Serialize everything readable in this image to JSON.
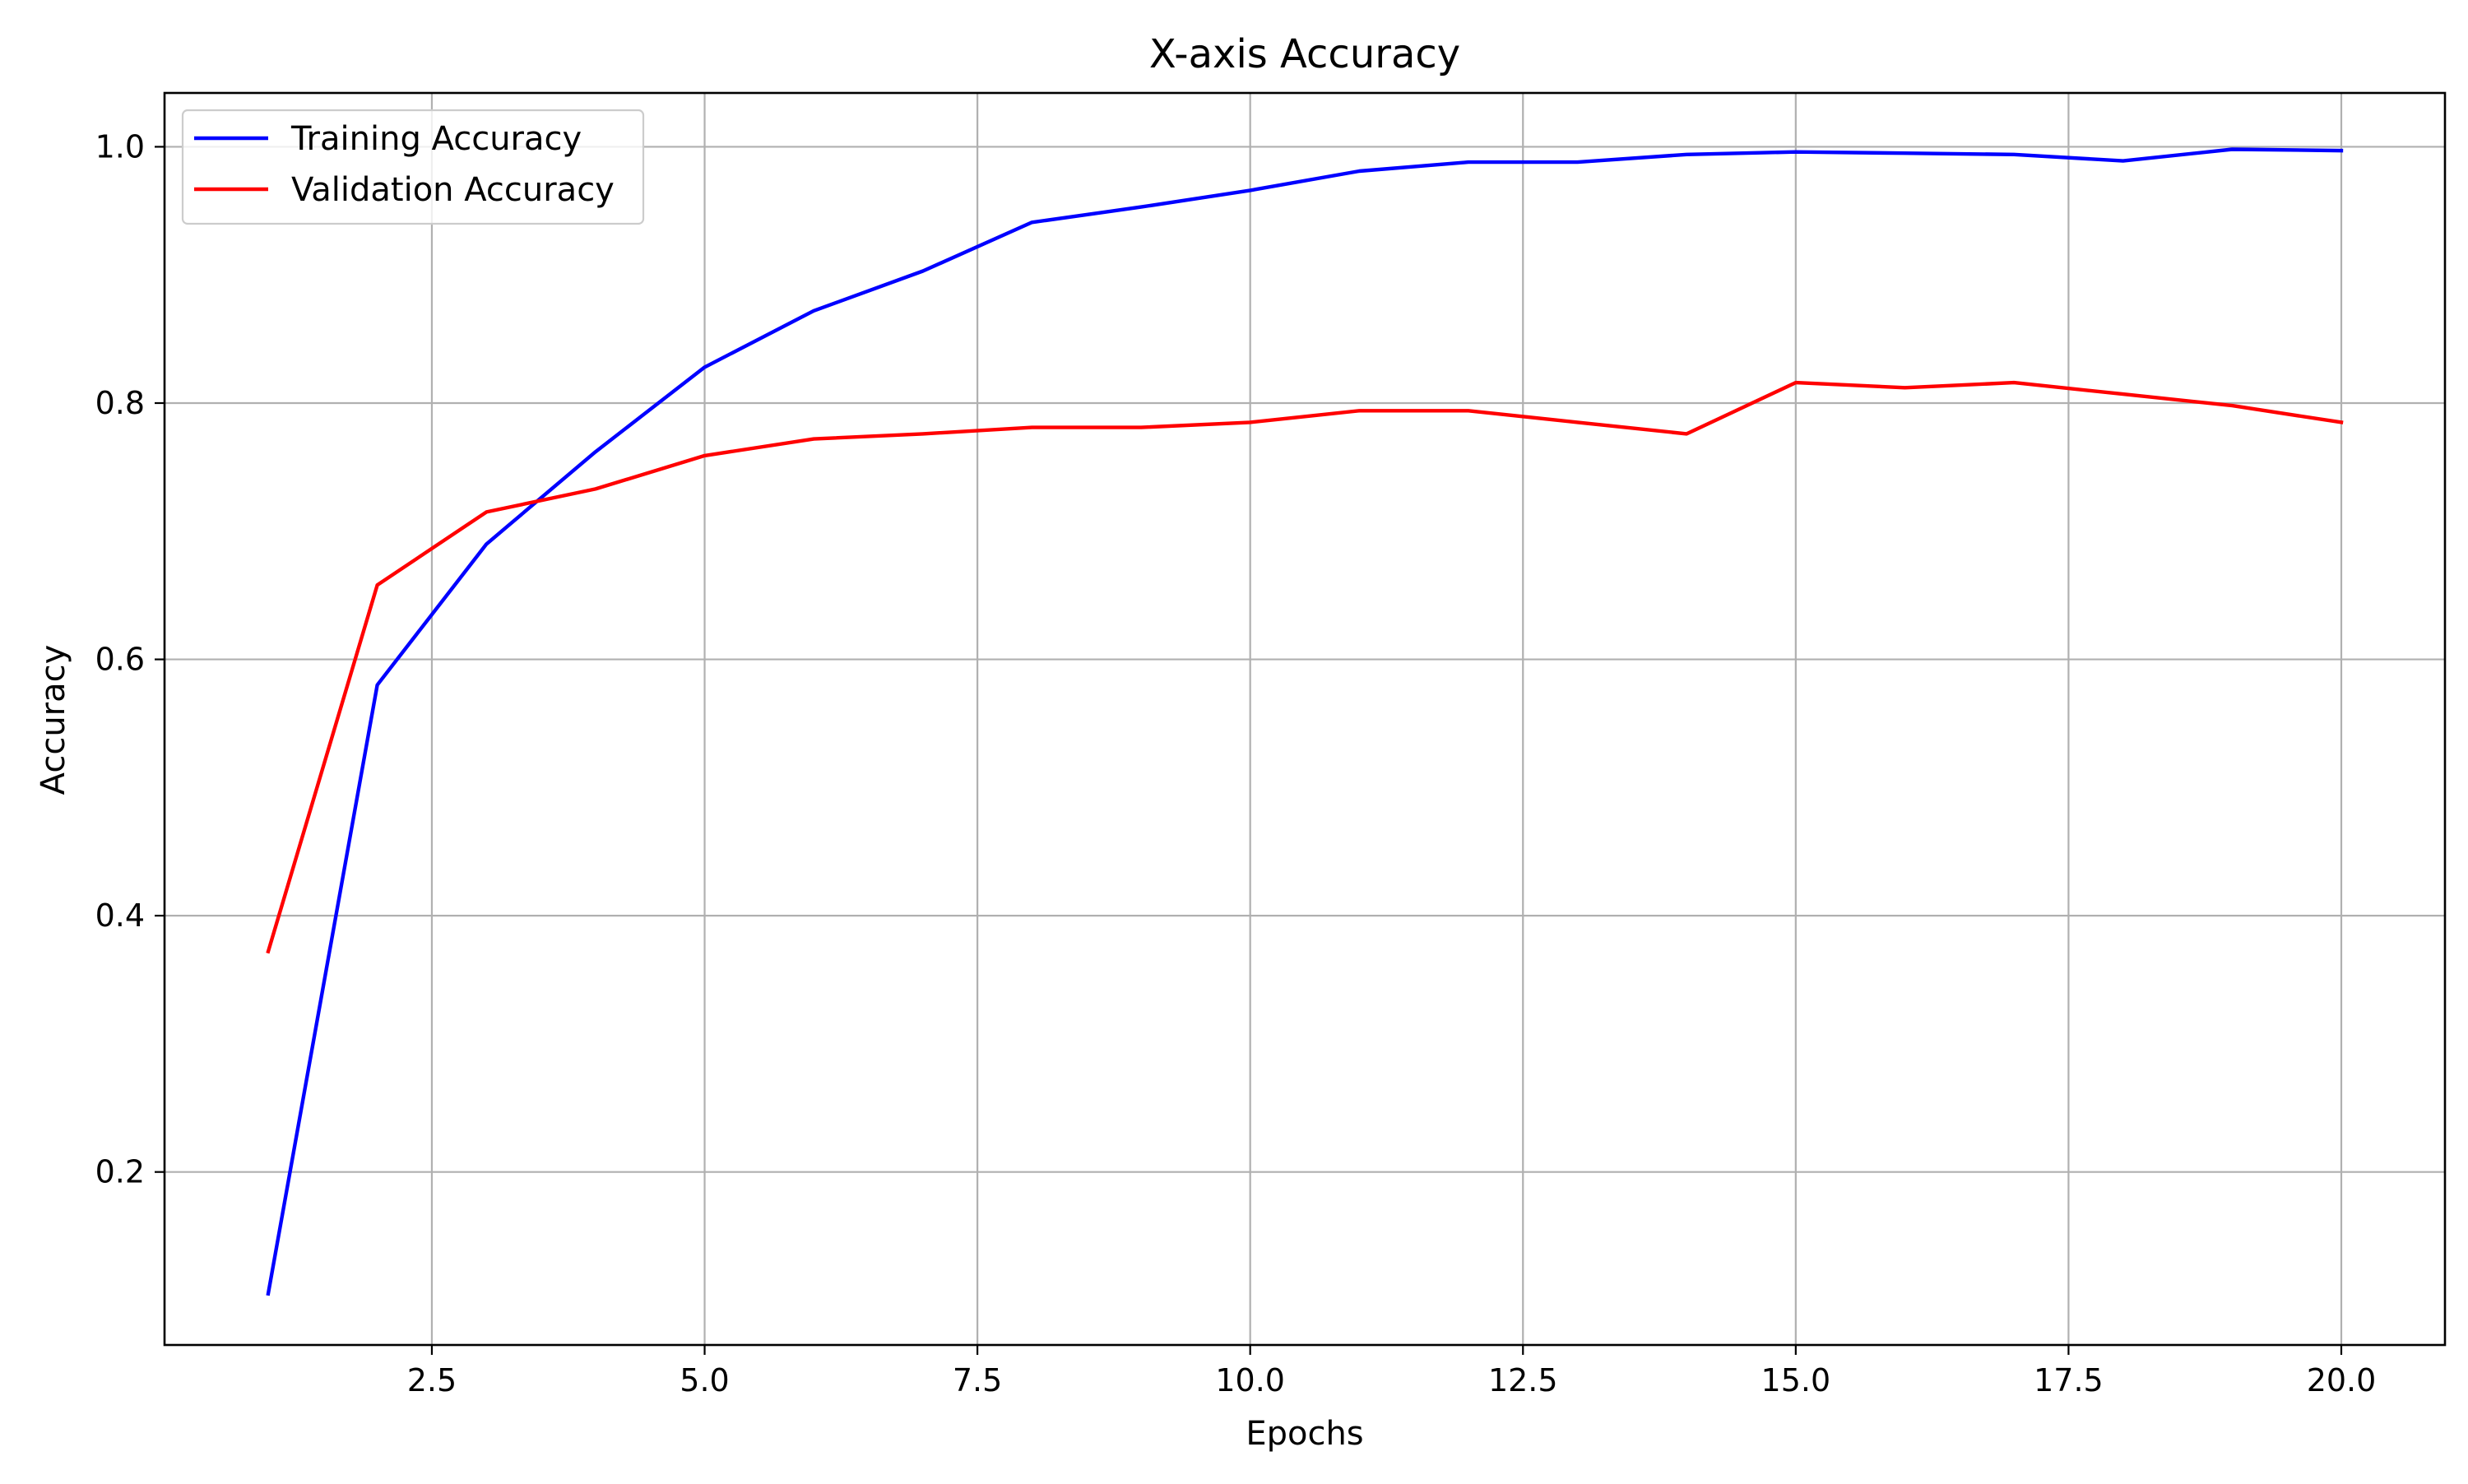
{
  "chart_data": {
    "type": "line",
    "title": "X-axis Accuracy",
    "xlabel": "Epochs",
    "ylabel": "Accuracy",
    "xlim": [
      0.05,
      20.95
    ],
    "ylim": [
      0.065,
      1.042
    ],
    "xticks": [
      2.5,
      5.0,
      7.5,
      10.0,
      12.5,
      15.0,
      17.5,
      20.0
    ],
    "xtick_labels": [
      "2.5",
      "5.0",
      "7.5",
      "10.0",
      "12.5",
      "15.0",
      "17.5",
      "20.0"
    ],
    "yticks": [
      0.2,
      0.4,
      0.6,
      0.8,
      1.0
    ],
    "ytick_labels": [
      "0.2",
      "0.4",
      "0.6",
      "0.8",
      "1.0"
    ],
    "grid": true,
    "legend_position": "top-left",
    "x": [
      1,
      2,
      3,
      4,
      5,
      6,
      7,
      8,
      9,
      10,
      11,
      12,
      13,
      14,
      15,
      16,
      17,
      18,
      19,
      20
    ],
    "series": [
      {
        "name": "Training Accuracy",
        "color": "#0000ff",
        "values": [
          0.105,
          0.58,
          0.69,
          0.762,
          0.828,
          0.872,
          0.903,
          0.941,
          0.953,
          0.966,
          0.981,
          0.988,
          0.988,
          0.994,
          0.996,
          0.995,
          0.994,
          0.989,
          0.998,
          0.997
        ]
      },
      {
        "name": "Validation Accuracy",
        "color": "#ff0000",
        "values": [
          0.372,
          0.658,
          0.715,
          0.733,
          0.759,
          0.772,
          0.776,
          0.781,
          0.781,
          0.785,
          0.794,
          0.794,
          0.785,
          0.776,
          0.816,
          0.812,
          0.816,
          0.807,
          0.798,
          0.785
        ]
      }
    ]
  }
}
